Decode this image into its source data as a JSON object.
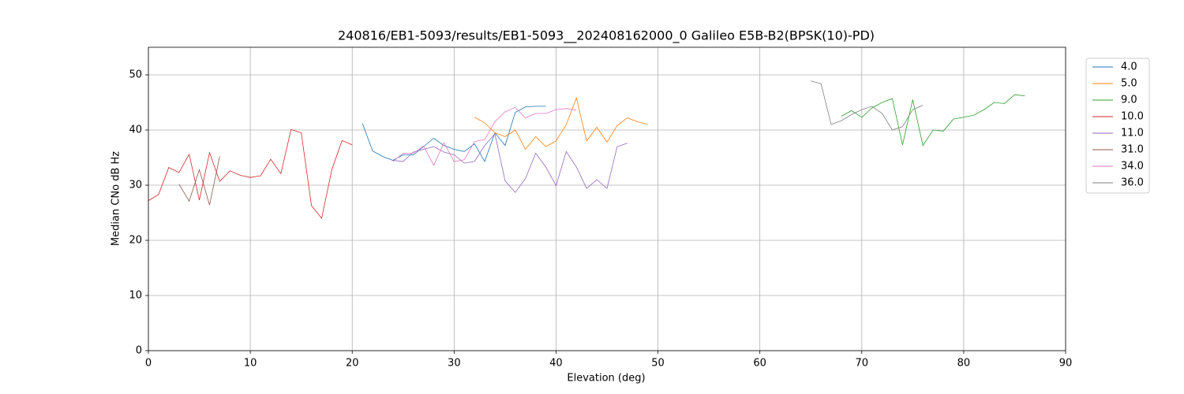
{
  "chart_data": {
    "type": "line",
    "title": "240816/EB1-5093/results/EB1-5093__202408162000_0 Galileo E5B-B2(BPSK(10)-PD)",
    "x_label": "Elevation (deg)",
    "y_label": "Median CNo dB Hz",
    "xlim": [
      0,
      90
    ],
    "ylim": [
      0,
      55
    ],
    "xticks": [
      0,
      10,
      20,
      30,
      40,
      50,
      60,
      70,
      80,
      90
    ],
    "yticks": [
      0,
      10,
      20,
      30,
      40,
      50
    ],
    "grid": true,
    "legend": "outside-upper-right",
    "series": [
      {
        "name": "4.0",
        "color": "#1f77b4",
        "x": [
          21,
          22,
          23,
          24,
          25,
          26,
          27,
          28,
          29,
          30,
          31,
          32,
          33,
          34,
          35,
          36,
          37,
          38,
          39
        ],
        "values": [
          41.2,
          36.2,
          35.2,
          34.5,
          35.5,
          35.5,
          37,
          38.5,
          37.2,
          36.5,
          36.1,
          37.5,
          34.3,
          39.5,
          37.2,
          43.2,
          44.2,
          44.3,
          44.3
        ]
      },
      {
        "name": "5.0",
        "color": "#ff7f0e",
        "x": [
          32,
          33,
          34,
          35,
          36,
          37,
          38,
          39,
          40,
          41,
          42,
          43,
          44,
          45,
          46,
          47,
          48,
          49
        ],
        "values": [
          42.3,
          41.3,
          39.5,
          38.8,
          40,
          36.5,
          38.8,
          37,
          38,
          41,
          45.8,
          38,
          40.5,
          37.8,
          40.8,
          42.2,
          41.5,
          41
        ]
      },
      {
        "name": "9.0",
        "color": "#2ca02c",
        "x": [
          68,
          69,
          70,
          71,
          72,
          73,
          74,
          75,
          76,
          77,
          78,
          79,
          80,
          81,
          82,
          83,
          84,
          85,
          86
        ],
        "values": [
          42.5,
          43.5,
          42.3,
          44,
          45,
          45.7,
          37.3,
          45.5,
          37.2,
          40,
          39.8,
          42,
          42.3,
          42.7,
          43.7,
          45,
          44.8,
          46.4,
          46.2
        ]
      },
      {
        "name": "10.0",
        "color": "#d62728",
        "x": [
          0,
          1,
          2,
          3,
          4,
          5,
          6,
          7,
          8,
          9,
          10,
          11,
          12,
          13,
          14,
          15,
          16,
          17,
          18,
          19,
          20
        ],
        "values": [
          27.2,
          28.3,
          33.2,
          32.3,
          35.6,
          27.3,
          35.9,
          30.7,
          32.6,
          31.8,
          31.4,
          31.7,
          34.7,
          32.1,
          40.1,
          39.5,
          26.3,
          24,
          32.8,
          38.1,
          37.3
        ]
      },
      {
        "name": "11.0",
        "color": "#9467bd",
        "x": [
          24,
          25,
          26,
          27,
          28,
          29,
          30,
          31,
          32,
          33,
          34,
          35,
          36,
          37,
          38,
          39,
          40,
          41,
          42,
          43,
          44,
          45,
          46,
          47
        ],
        "values": [
          34.5,
          34.3,
          36,
          36.5,
          37,
          36,
          35.5,
          34,
          34.3,
          37.2,
          39.3,
          30.8,
          28.7,
          31.2,
          35.8,
          33.3,
          29.9,
          36.1,
          33.3,
          29.4,
          31,
          29.4,
          37,
          37.6
        ]
      },
      {
        "name": "31.0",
        "color": "#8c564b",
        "x": [
          3,
          4,
          5,
          6,
          7
        ],
        "values": [
          30.2,
          27.1,
          32.8,
          26.4,
          35.2
        ]
      },
      {
        "name": "34.0",
        "color": "#e377c2",
        "x": [
          24,
          25,
          26,
          27,
          28,
          29,
          30,
          31,
          32,
          33,
          34,
          35,
          36,
          37,
          38,
          39,
          40,
          41,
          42
        ],
        "values": [
          34.3,
          35.8,
          35.8,
          37.1,
          33.6,
          37.7,
          34.3,
          34.6,
          37.9,
          38.3,
          41.5,
          43.3,
          44.1,
          42.2,
          43,
          43,
          43.7,
          43.9,
          43.6
        ]
      },
      {
        "name": "36.0",
        "color": "#7f7f7f",
        "x": [
          65,
          66,
          67,
          68,
          69,
          70,
          71,
          72,
          73,
          74,
          75,
          76
        ],
        "values": [
          48.9,
          48.4,
          41,
          41.7,
          42.8,
          43.7,
          44.3,
          43,
          40,
          40.6,
          43.7,
          44.5
        ]
      }
    ]
  }
}
